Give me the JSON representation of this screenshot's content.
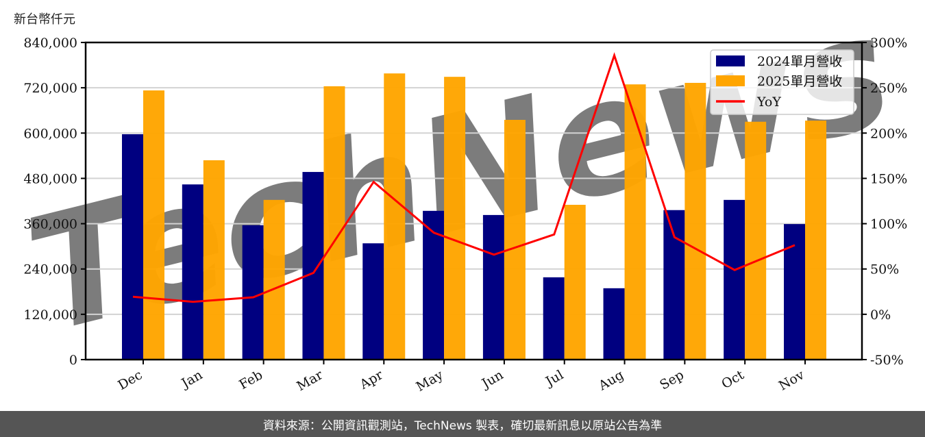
{
  "unit_label": "新台幣仟元",
  "footer": "資料來源：公開資訊觀測站，TechNews 製表，確切最新訊息以原站公告為準",
  "watermark": "TechNews",
  "colors": {
    "series_2024": "#000080",
    "series_2025": "#FFA500",
    "yoy": "#FF0000",
    "grid": "#d3d3d3",
    "footer_bg": "#555555"
  },
  "chart_data": {
    "type": "bar",
    "title": "",
    "xlabel": "",
    "ylabel": "新台幣仟元",
    "categories": [
      "Dec",
      "Jan",
      "Feb",
      "Mar",
      "Apr",
      "May",
      "Jun",
      "Jul",
      "Aug",
      "Sep",
      "Oct",
      "Nov"
    ],
    "series": [
      {
        "name": "2024單月營收",
        "type": "bar",
        "axis": "left",
        "values": [
          597000,
          464000,
          356000,
          497000,
          308000,
          394000,
          383000,
          218000,
          189000,
          396000,
          423000,
          359000
        ]
      },
      {
        "name": "2025單月營收",
        "type": "bar",
        "axis": "left",
        "values": [
          713000,
          528000,
          423000,
          724000,
          758000,
          749000,
          635000,
          410000,
          729000,
          733000,
          630000,
          633000
        ]
      },
      {
        "name": "YoY",
        "type": "line",
        "axis": "right",
        "unit": "%",
        "values": [
          19.4,
          13.8,
          18.8,
          45.7,
          146.1,
          90.1,
          65.8,
          88.1,
          285.7,
          85.1,
          48.9,
          76.3
        ]
      }
    ],
    "ylim": [
      0,
      840000
    ],
    "yticks": [
      "0",
      "120,000",
      "240,000",
      "360,000",
      "480,000",
      "600,000",
      "720,000",
      "840,000"
    ],
    "y2lim": [
      -50,
      300
    ],
    "y2ticks": [
      "-50%",
      "0%",
      "50%",
      "100%",
      "150%",
      "200%",
      "250%",
      "300%"
    ],
    "grid": true,
    "legend": {
      "position": "upper right",
      "entries": [
        "2024單月營收",
        "2025單月營收",
        "YoY"
      ]
    }
  }
}
